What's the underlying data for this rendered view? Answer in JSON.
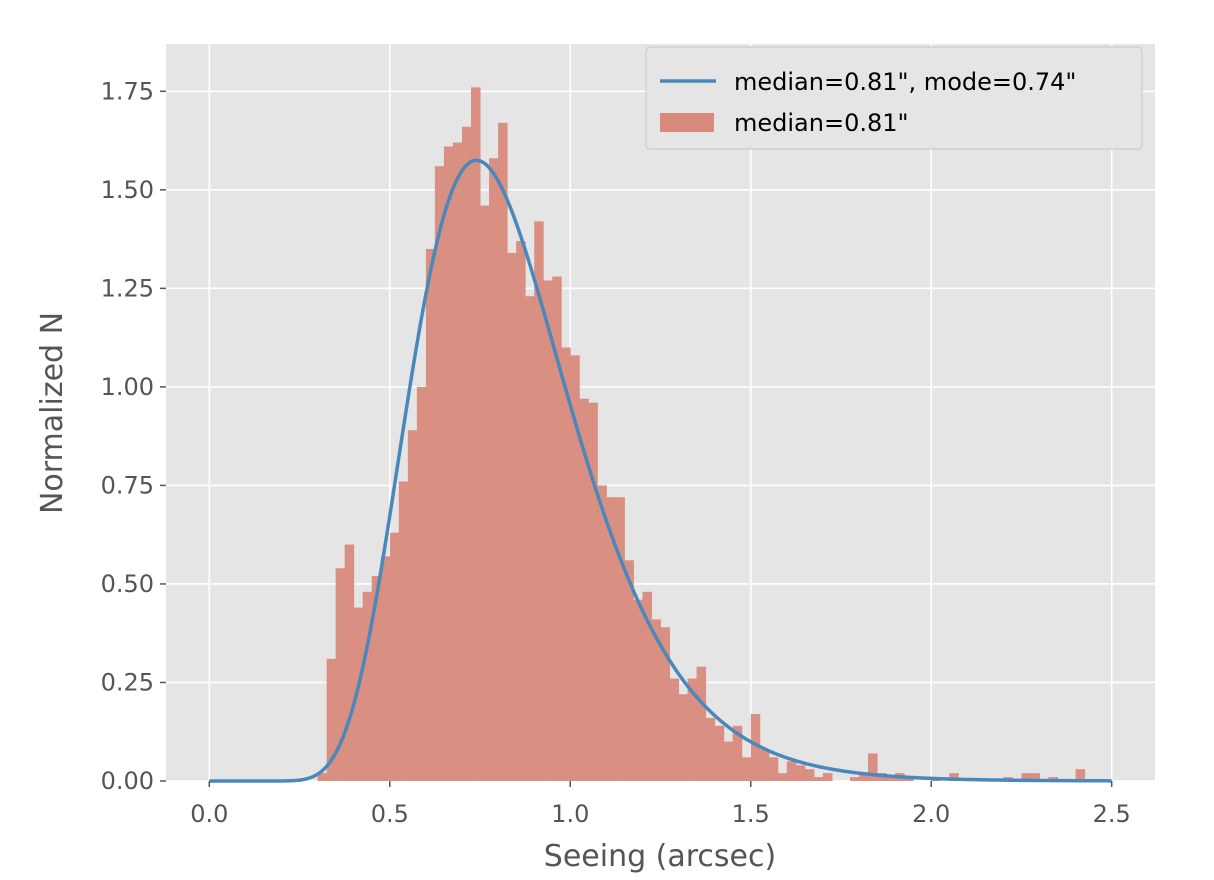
{
  "chart_data": {
    "type": "bar",
    "xlabel": "Seeing (arcsec)",
    "ylabel": "Normalized N",
    "xlim": [
      -0.12,
      2.62
    ],
    "ylim": [
      0,
      1.87
    ],
    "grid": true,
    "legend_position": "top-right",
    "x_ticks": [
      "0.0",
      "0.5",
      "1.0",
      "1.5",
      "2.0",
      "2.5"
    ],
    "y_ticks": [
      "0.00",
      "0.25",
      "0.50",
      "0.75",
      "1.00",
      "1.25",
      "1.50",
      "1.75"
    ],
    "bin_width": 0.025,
    "histogram": {
      "name": "median=0.81\"",
      "bin_starts": [
        0.3,
        0.325,
        0.35,
        0.375,
        0.4,
        0.425,
        0.45,
        0.475,
        0.5,
        0.525,
        0.55,
        0.575,
        0.6,
        0.625,
        0.65,
        0.675,
        0.7,
        0.725,
        0.75,
        0.775,
        0.8,
        0.825,
        0.85,
        0.875,
        0.9,
        0.925,
        0.95,
        0.975,
        1.0,
        1.025,
        1.05,
        1.075,
        1.1,
        1.125,
        1.15,
        1.175,
        1.2,
        1.225,
        1.25,
        1.275,
        1.3,
        1.325,
        1.35,
        1.375,
        1.4,
        1.425,
        1.45,
        1.475,
        1.5,
        1.525,
        1.55,
        1.575,
        1.6,
        1.625,
        1.65,
        1.675,
        1.7,
        1.725,
        1.75,
        1.775,
        1.8,
        1.825,
        1.85,
        1.875,
        1.9,
        1.925,
        1.95,
        1.975,
        2.0,
        2.025,
        2.05,
        2.075,
        2.1,
        2.125,
        2.15,
        2.175,
        2.2,
        2.225,
        2.25,
        2.275,
        2.3,
        2.325,
        2.35,
        2.375,
        2.4
      ],
      "values": [
        0.02,
        0.31,
        0.54,
        0.6,
        0.44,
        0.48,
        0.52,
        0.57,
        0.63,
        0.76,
        0.89,
        1.0,
        1.35,
        1.56,
        1.61,
        1.62,
        1.66,
        1.76,
        1.46,
        1.58,
        1.67,
        1.34,
        1.37,
        1.23,
        1.42,
        1.27,
        1.28,
        1.1,
        1.08,
        0.97,
        0.96,
        0.75,
        0.72,
        0.72,
        0.56,
        0.46,
        0.48,
        0.41,
        0.39,
        0.26,
        0.22,
        0.26,
        0.29,
        0.16,
        0.14,
        0.1,
        0.14,
        0.06,
        0.17,
        0.08,
        0.06,
        0.02,
        0.05,
        0.04,
        0.03,
        0.01,
        0.02,
        0.0,
        0.0,
        0.01,
        0.02,
        0.07,
        0.02,
        0.01,
        0.02,
        0.01,
        0.0,
        0.0,
        0.01,
        0.0,
        0.02,
        0.0,
        0.0,
        0.0,
        0.0,
        0.0,
        0.01,
        0.0,
        0.02,
        0.02,
        0.0,
        0.01,
        0.0,
        0.0,
        0.03
      ]
    },
    "curve": {
      "name": "median=0.81\", mode=0.74\"",
      "median": 0.81,
      "mode": 0.74,
      "peak": 1.575,
      "x_start": 0.0,
      "x_end": 2.5
    },
    "colors": {
      "background": "#e5e5e5",
      "grid": "#ffffff",
      "bars": "#d88b7c",
      "curve": "#4a88bb",
      "legend_bg": "#e5e5e5",
      "legend_border": "#cccccc"
    }
  }
}
